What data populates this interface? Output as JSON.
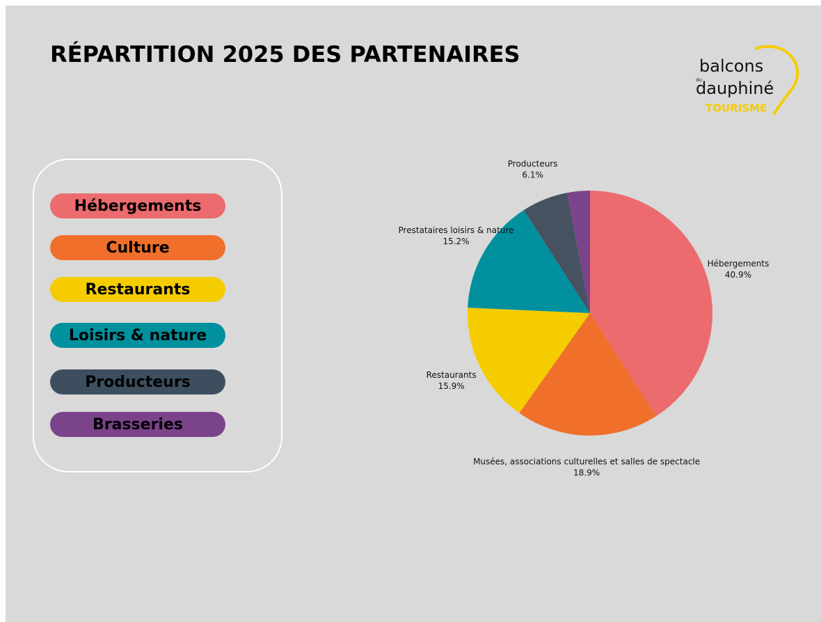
{
  "title": "RÉPARTITION 2025 DES PARTENAIRES",
  "logo": {
    "line1": "balcons",
    "small": "du",
    "line2": "dauphiné",
    "line3": "TOURISME"
  },
  "legend": [
    {
      "label": "Hébergements",
      "color": "#ec6b6e"
    },
    {
      "label": "Culture",
      "color": "#ef6f2b"
    },
    {
      "label": "Restaurants",
      "color": "#f5cc00"
    },
    {
      "label": "Loisirs & nature",
      "color": "#00909e"
    },
    {
      "label": "Producteurs",
      "color": "#3d4f5f"
    },
    {
      "label": "Brasseries",
      "color": "#7b438a"
    }
  ],
  "chart_data": {
    "type": "pie",
    "categories": [
      "Hébergements",
      "Musées, associations culturelles et salles de spectacle",
      "Restaurants",
      "Prestataires loisirs & nature",
      "Producteurs",
      null
    ],
    "values": [
      40.9,
      18.9,
      15.9,
      15.2,
      6.1,
      3.0
    ],
    "value_labels": [
      "40.9%",
      "18.9%",
      "15.9%",
      "15.2%",
      "6.1%",
      null
    ],
    "colors": [
      "#ec6b6e",
      "#ef6f2b",
      "#f5cc00",
      "#00909e",
      "#46525f",
      "#7b438a"
    ]
  }
}
